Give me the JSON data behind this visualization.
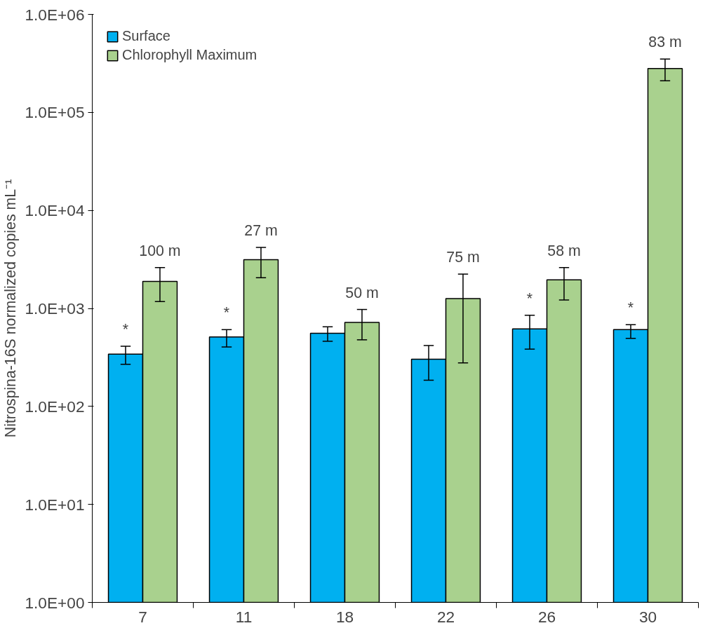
{
  "chart_data": {
    "type": "bar",
    "ylabel": "Nitrospina-16S normalized copies mL⁻¹",
    "categories": [
      "7",
      "11",
      "18",
      "22",
      "26",
      "30"
    ],
    "series": [
      {
        "name": "Surface",
        "color": "#00b0f0",
        "values": [
          341,
          512,
          557,
          303,
          617,
          607
        ],
        "errors": [
          [
            269,
            411
          ],
          [
            404,
            607
          ],
          [
            462,
            649
          ],
          [
            185,
            418
          ],
          [
            384,
            851
          ],
          [
            495,
            683
          ]
        ]
      },
      {
        "name": "Chlorophyll Maximum",
        "color": "#a9d18e",
        "values": [
          1888,
          3141,
          719,
          1257,
          1954,
          280000
        ],
        "errors": [
          [
            1175,
            2607
          ],
          [
            2056,
            4190
          ],
          [
            478,
            975
          ],
          [
            278,
            2238
          ],
          [
            1216,
            2607
          ],
          [
            210000,
            350000
          ]
        ]
      }
    ],
    "annotations": [
      {
        "text": "*",
        "x": "7",
        "y": 341
      },
      {
        "text": "*",
        "x": "11",
        "y": 512
      },
      {
        "text": "*",
        "x": "26",
        "y": 617
      },
      {
        "text": "*",
        "x": "30",
        "y": 607
      },
      {
        "text": "100 m",
        "x": "7",
        "y": 1888
      },
      {
        "text": "27 m",
        "x": "11",
        "y": 3141
      },
      {
        "text": "50 m",
        "x": "18",
        "y": 719
      },
      {
        "text": "75 m",
        "x": "22",
        "y": 1257
      },
      {
        "text": "58 m",
        "x": "26",
        "y": 1954
      },
      {
        "text": "83 m",
        "x": "30",
        "y": 280000
      }
    ],
    "log": true,
    "ylim": [
      1,
      1000000
    ],
    "yticks": [
      {
        "value": 1,
        "label": "1.0E+00"
      },
      {
        "value": 10,
        "label": "1.0E+01"
      },
      {
        "value": 100,
        "label": "1.0E+02"
      },
      {
        "value": 1000,
        "label": "1.0E+03"
      },
      {
        "value": 10000,
        "label": "1.0E+04"
      },
      {
        "value": 100000,
        "label": "1.0E+05"
      },
      {
        "value": 1000000,
        "label": "1.0E+06"
      }
    ],
    "grid": false,
    "legend": "top left"
  }
}
